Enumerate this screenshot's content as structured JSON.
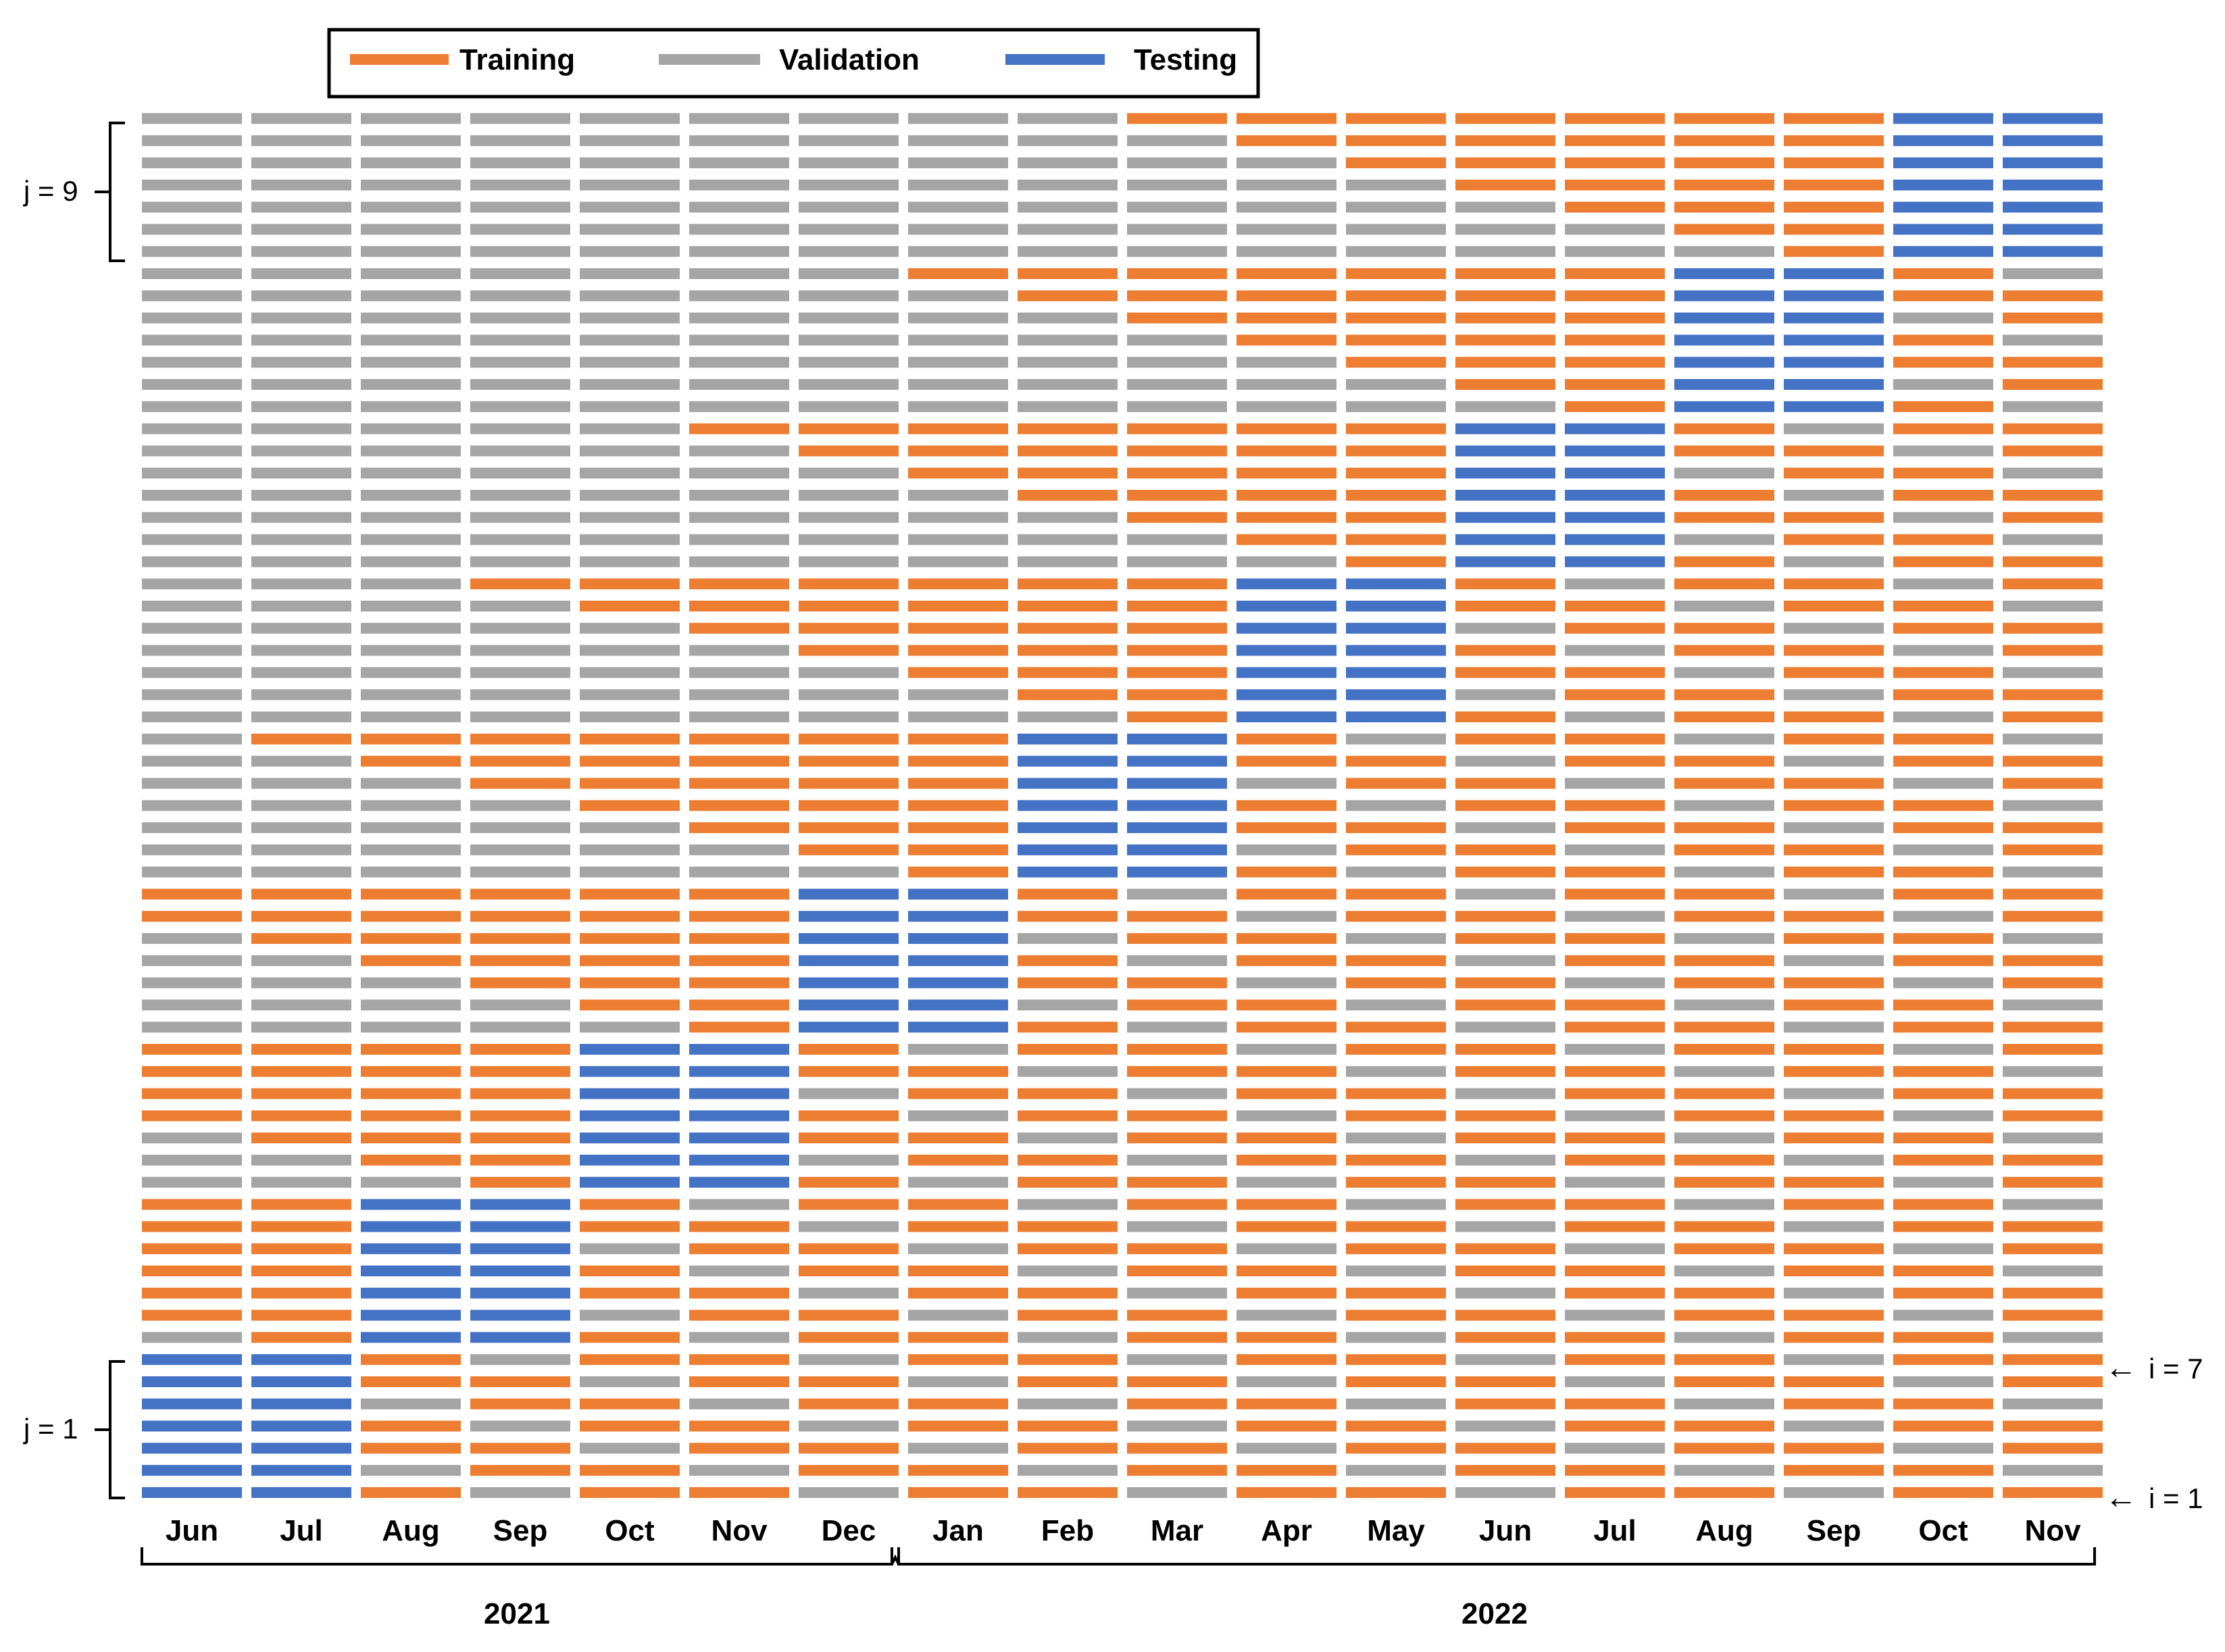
{
  "legend": {
    "items": [
      {
        "label": "Training",
        "color": "#ED7D31"
      },
      {
        "label": "Validation",
        "color": "#A5A5A5"
      },
      {
        "label": "Testing",
        "color": "#4472C4"
      }
    ]
  },
  "months": [
    "Jun",
    "Jul",
    "Aug",
    "Sep",
    "Oct",
    "Nov",
    "Dec",
    "Jan",
    "Feb",
    "Mar",
    "Apr",
    "May",
    "Jun",
    "Jul",
    "Aug",
    "Sep",
    "Oct",
    "Nov"
  ],
  "years": [
    {
      "label": "2021",
      "first_month_index": 0,
      "last_month_index": 6
    },
    {
      "label": "2022",
      "first_month_index": 7,
      "last_month_index": 17
    }
  ],
  "annotations": {
    "j_top": "j = 9",
    "j_bottom": "j = 1",
    "i_top": "i = 7",
    "i_bottom": "i = 1",
    "arrow": "←"
  },
  "grid": {
    "groups": 9,
    "rows_per_group": 7,
    "test_offset_months": 1,
    "test_span_months": 2,
    "codes": {
      "T": "Training",
      "V": "Validation",
      "X": "Testing"
    }
  }
}
